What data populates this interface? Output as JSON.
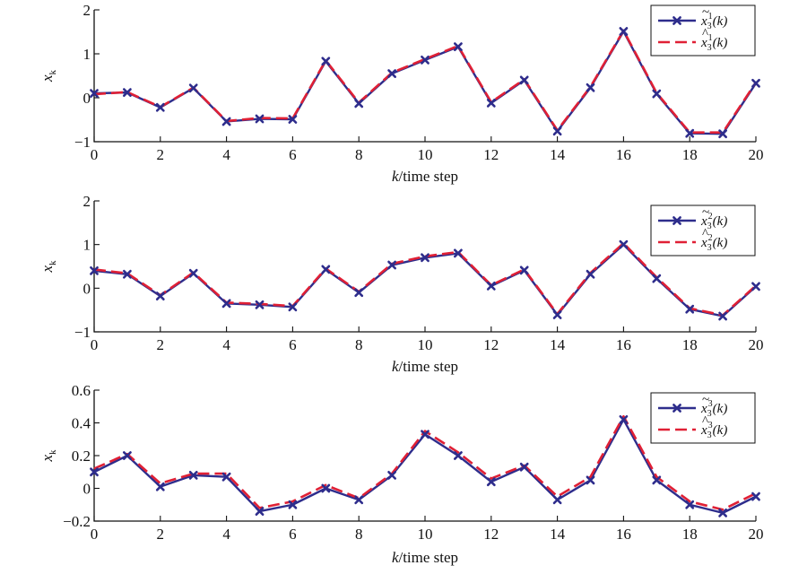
{
  "chart_data": [
    {
      "type": "line",
      "xlabel_var": "k",
      "xlabel_rest": "/time step",
      "ylabel_var": "x",
      "ylabel_sub": "k",
      "xlim": [
        0,
        20
      ],
      "ylim": [
        -1,
        2
      ],
      "xticks": [
        "0",
        "2",
        "4",
        "6",
        "8",
        "10",
        "12",
        "14",
        "16",
        "18",
        "20"
      ],
      "yticks": [
        "−1",
        "0",
        "1",
        "2"
      ],
      "yticks_values": [
        -1,
        0,
        1,
        2
      ],
      "legend_position": "top-right",
      "x": [
        0,
        1,
        2,
        3,
        4,
        5,
        6,
        7,
        8,
        9,
        10,
        11,
        12,
        13,
        14,
        15,
        16,
        17,
        18,
        19,
        20
      ],
      "series": [
        {
          "name_base": "x",
          "name_accent": "~",
          "name_sup": "1",
          "name_sub": "3",
          "name_arg": "(k)",
          "color": "#2e2d8c",
          "style": "solid-x",
          "values": [
            0.1,
            0.12,
            -0.22,
            0.22,
            -0.54,
            -0.48,
            -0.49,
            0.83,
            -0.13,
            0.55,
            0.86,
            1.16,
            -0.12,
            0.4,
            -0.76,
            0.23,
            1.51,
            0.09,
            -0.81,
            -0.82,
            0.33
          ]
        },
        {
          "name_base": "x",
          "name_accent": "^",
          "name_sup": "1",
          "name_sub": "3",
          "name_arg": "(k)",
          "color": "#e02035",
          "style": "dashed",
          "values": [
            0.08,
            0.13,
            -0.21,
            0.23,
            -0.53,
            -0.46,
            -0.47,
            0.85,
            -0.11,
            0.57,
            0.88,
            1.18,
            -0.1,
            0.42,
            -0.74,
            0.25,
            1.53,
            0.11,
            -0.79,
            -0.79,
            0.35
          ]
        }
      ]
    },
    {
      "type": "line",
      "xlabel_var": "k",
      "xlabel_rest": "/time step",
      "ylabel_var": "x",
      "ylabel_sub": "k",
      "xlim": [
        0,
        20
      ],
      "ylim": [
        -1,
        2
      ],
      "xticks": [
        "0",
        "2",
        "4",
        "6",
        "8",
        "10",
        "12",
        "14",
        "16",
        "18",
        "20"
      ],
      "yticks": [
        "−1",
        "0",
        "1",
        "2"
      ],
      "yticks_values": [
        -1,
        0,
        1,
        2
      ],
      "legend_position": "top-right",
      "x": [
        0,
        1,
        2,
        3,
        4,
        5,
        6,
        7,
        8,
        9,
        10,
        11,
        12,
        13,
        14,
        15,
        16,
        17,
        18,
        19,
        20
      ],
      "series": [
        {
          "name_base": "x",
          "name_accent": "~",
          "name_sup": "2",
          "name_sub": "3",
          "name_arg": "(k)",
          "color": "#2e2d8c",
          "style": "solid-x",
          "values": [
            0.4,
            0.32,
            -0.18,
            0.34,
            -0.35,
            -0.38,
            -0.43,
            0.43,
            -0.1,
            0.53,
            0.7,
            0.8,
            0.05,
            0.41,
            -0.61,
            0.32,
            1.0,
            0.22,
            -0.48,
            -0.64,
            0.04
          ]
        },
        {
          "name_base": "x",
          "name_accent": "^",
          "name_sup": "2",
          "name_sub": "3",
          "name_arg": "(k)",
          "color": "#e02035",
          "style": "dashed",
          "values": [
            0.43,
            0.34,
            -0.16,
            0.36,
            -0.33,
            -0.36,
            -0.41,
            0.45,
            -0.08,
            0.56,
            0.73,
            0.83,
            0.07,
            0.43,
            -0.59,
            0.35,
            1.03,
            0.25,
            -0.46,
            -0.62,
            0.06
          ]
        }
      ]
    },
    {
      "type": "line",
      "xlabel_var": "k",
      "xlabel_rest": "/time step",
      "ylabel_var": "x",
      "ylabel_sub": "k",
      "xlim": [
        0,
        20
      ],
      "ylim": [
        -0.2,
        0.6
      ],
      "xticks": [
        "0",
        "2",
        "4",
        "6",
        "8",
        "10",
        "12",
        "14",
        "16",
        "18",
        "20"
      ],
      "yticks": [
        "−0.2",
        "0",
        "0.2",
        "0.4",
        "0.6"
      ],
      "yticks_values": [
        -0.2,
        0,
        0.2,
        0.4,
        0.6
      ],
      "legend_position": "top-right",
      "x": [
        0,
        1,
        2,
        3,
        4,
        5,
        6,
        7,
        8,
        9,
        10,
        11,
        12,
        13,
        14,
        15,
        16,
        17,
        18,
        19,
        20
      ],
      "series": [
        {
          "name_base": "x",
          "name_accent": "~",
          "name_sup": "3",
          "name_sub": "3",
          "name_arg": "(k)",
          "color": "#2e2d8c",
          "style": "solid-x",
          "values": [
            0.1,
            0.2,
            0.01,
            0.08,
            0.07,
            -0.14,
            -0.1,
            0.0,
            -0.07,
            0.08,
            0.33,
            0.2,
            0.04,
            0.13,
            -0.07,
            0.05,
            0.42,
            0.05,
            -0.1,
            -0.15,
            -0.05
          ]
        },
        {
          "name_base": "x",
          "name_accent": "^",
          "name_sup": "3",
          "name_sub": "3",
          "name_arg": "(k)",
          "color": "#e02035",
          "style": "dashed",
          "values": [
            0.12,
            0.21,
            0.03,
            0.09,
            0.09,
            -0.12,
            -0.08,
            0.02,
            -0.06,
            0.09,
            0.35,
            0.22,
            0.06,
            0.14,
            -0.05,
            0.07,
            0.44,
            0.07,
            -0.08,
            -0.13,
            -0.03
          ]
        }
      ]
    }
  ]
}
